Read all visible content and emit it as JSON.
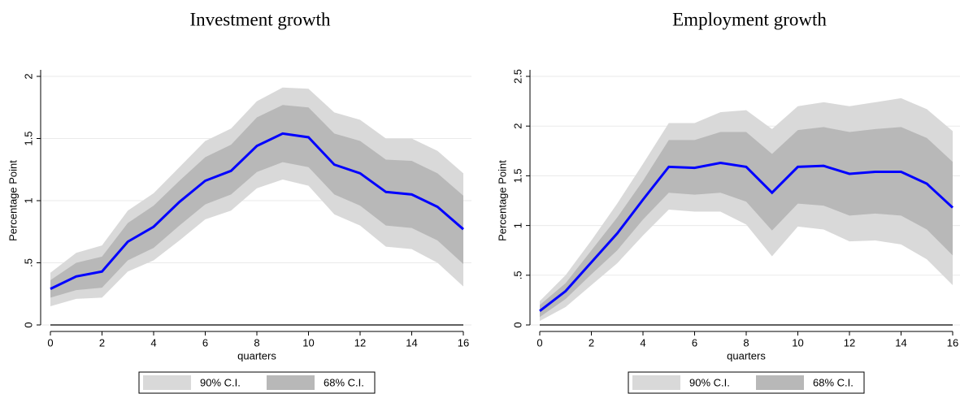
{
  "chart_data": [
    {
      "type": "line",
      "title": "Investment growth",
      "xlabel": "quarters",
      "ylabel": "Percentage Point",
      "x": [
        0,
        1,
        2,
        3,
        4,
        5,
        6,
        7,
        8,
        9,
        10,
        11,
        12,
        13,
        14,
        15,
        16
      ],
      "values": [
        0.29,
        0.39,
        0.43,
        0.67,
        0.79,
        0.99,
        1.16,
        1.24,
        1.44,
        1.54,
        1.51,
        1.29,
        1.22,
        1.07,
        1.05,
        0.95,
        0.77
      ],
      "color": "#0000ff",
      "bands": [
        {
          "name": "90% C.I.",
          "color": "#d9d9d9",
          "lower": [
            0.15,
            0.21,
            0.22,
            0.43,
            0.52,
            0.68,
            0.85,
            0.92,
            1.1,
            1.17,
            1.12,
            0.89,
            0.8,
            0.63,
            0.61,
            0.5,
            0.31
          ],
          "upper": [
            0.42,
            0.58,
            0.64,
            0.92,
            1.06,
            1.27,
            1.48,
            1.58,
            1.8,
            1.91,
            1.9,
            1.71,
            1.65,
            1.5,
            1.5,
            1.4,
            1.22
          ]
        },
        {
          "name": "68% C.I.",
          "color": "#b8b8b8",
          "lower": [
            0.22,
            0.28,
            0.3,
            0.52,
            0.62,
            0.8,
            0.97,
            1.05,
            1.23,
            1.31,
            1.27,
            1.05,
            0.96,
            0.8,
            0.78,
            0.68,
            0.49
          ],
          "upper": [
            0.36,
            0.5,
            0.55,
            0.82,
            0.96,
            1.16,
            1.35,
            1.45,
            1.67,
            1.77,
            1.75,
            1.54,
            1.48,
            1.33,
            1.32,
            1.22,
            1.04
          ]
        }
      ],
      "xlim": [
        0,
        16
      ],
      "xticks": [
        0,
        2,
        4,
        6,
        8,
        10,
        12,
        14,
        16
      ],
      "ylim": [
        0,
        2
      ],
      "yticks": [
        0,
        {
          "value": 0.5,
          "label": ".5"
        },
        1,
        1.5,
        2
      ],
      "grid": true
    },
    {
      "type": "line",
      "title": "Employment growth",
      "xlabel": "quarters",
      "ylabel": "Percentage Point",
      "x": [
        0,
        1,
        2,
        3,
        4,
        5,
        6,
        7,
        8,
        9,
        10,
        11,
        12,
        13,
        14,
        15,
        16
      ],
      "values": [
        0.14,
        0.34,
        0.63,
        0.92,
        1.26,
        1.59,
        1.58,
        1.63,
        1.59,
        1.33,
        1.59,
        1.6,
        1.52,
        1.54,
        1.54,
        1.42,
        1.18
      ],
      "color": "#0000ff",
      "bands": [
        {
          "name": "90% C.I.",
          "color": "#d9d9d9",
          "lower": [
            0.04,
            0.18,
            0.4,
            0.62,
            0.9,
            1.16,
            1.14,
            1.14,
            1.01,
            0.69,
            0.99,
            0.96,
            0.84,
            0.85,
            0.81,
            0.66,
            0.4
          ],
          "upper": [
            0.24,
            0.5,
            0.85,
            1.22,
            1.62,
            2.03,
            2.03,
            2.14,
            2.16,
            1.97,
            2.2,
            2.24,
            2.2,
            2.24,
            2.28,
            2.17,
            1.95
          ]
        },
        {
          "name": "68% C.I.",
          "color": "#b8b8b8",
          "lower": [
            0.08,
            0.26,
            0.51,
            0.75,
            1.06,
            1.33,
            1.31,
            1.33,
            1.24,
            0.95,
            1.22,
            1.2,
            1.1,
            1.12,
            1.1,
            0.96,
            0.7
          ],
          "upper": [
            0.2,
            0.42,
            0.75,
            1.08,
            1.45,
            1.86,
            1.86,
            1.94,
            1.94,
            1.72,
            1.96,
            1.99,
            1.94,
            1.97,
            1.99,
            1.88,
            1.64
          ]
        }
      ],
      "xlim": [
        0,
        16
      ],
      "xticks": [
        0,
        2,
        4,
        6,
        8,
        10,
        12,
        14,
        16
      ],
      "ylim": [
        0,
        2.5
      ],
      "yticks": [
        0,
        {
          "value": 0.5,
          "label": ".5"
        },
        1,
        1.5,
        2,
        {
          "value": 2.5,
          "label": "2.5"
        }
      ],
      "grid": true
    }
  ]
}
